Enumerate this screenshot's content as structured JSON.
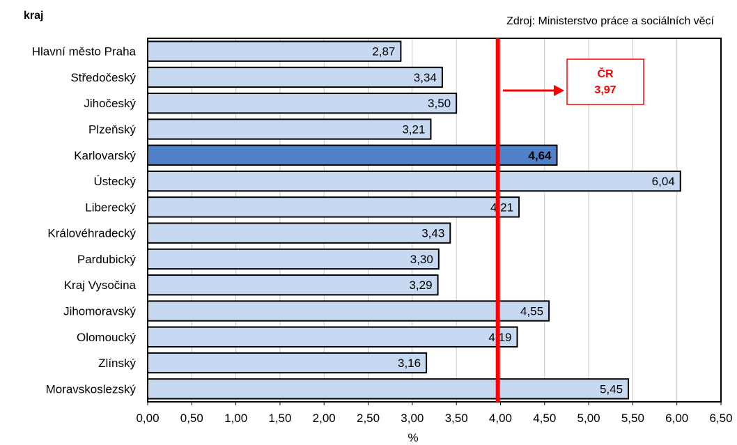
{
  "chart_data": {
    "type": "bar",
    "orientation": "horizontal",
    "y_axis_title": "kraj",
    "source": "Zdroj: Ministerstvo práce a sociálních věcí",
    "xlabel": "%",
    "xlim": [
      0,
      6.5
    ],
    "xticks": [
      "0,00",
      "0,50",
      "1,00",
      "1,50",
      "2,00",
      "2,50",
      "3,00",
      "3,50",
      "4,00",
      "4,50",
      "5,00",
      "5,50",
      "6,00",
      "6,50"
    ],
    "grid": "vertical",
    "categories": [
      "Hlavní město Praha",
      "Středočeský",
      "Jihočeský",
      "Plzeňský",
      "Karlovarský",
      "Ústecký",
      "Liberecký",
      "Královéhradecký",
      "Pardubický",
      "Kraj Vysočina",
      "Jihomoravský",
      "Olomoucký",
      "Zlínský",
      "Moravskoslezský"
    ],
    "values": [
      2.87,
      3.34,
      3.5,
      3.21,
      4.64,
      6.04,
      4.21,
      3.43,
      3.3,
      3.29,
      4.55,
      4.19,
      3.16,
      5.45
    ],
    "value_labels": [
      "2,87",
      "3,34",
      "3,50",
      "3,21",
      "4,64",
      "6,04",
      "4,21",
      "3,43",
      "3,30",
      "3,29",
      "4,55",
      "4,19",
      "3,16",
      "5,45"
    ],
    "highlight_category": "Karlovarský",
    "reference": {
      "value": 3.97,
      "label_line1": "ČR",
      "label_line2": "3,97"
    },
    "colors": {
      "bar": "#c6d9f1",
      "highlight": "#4f81c8",
      "reference": "#ff0000",
      "grid": "#c8c8c8"
    }
  }
}
